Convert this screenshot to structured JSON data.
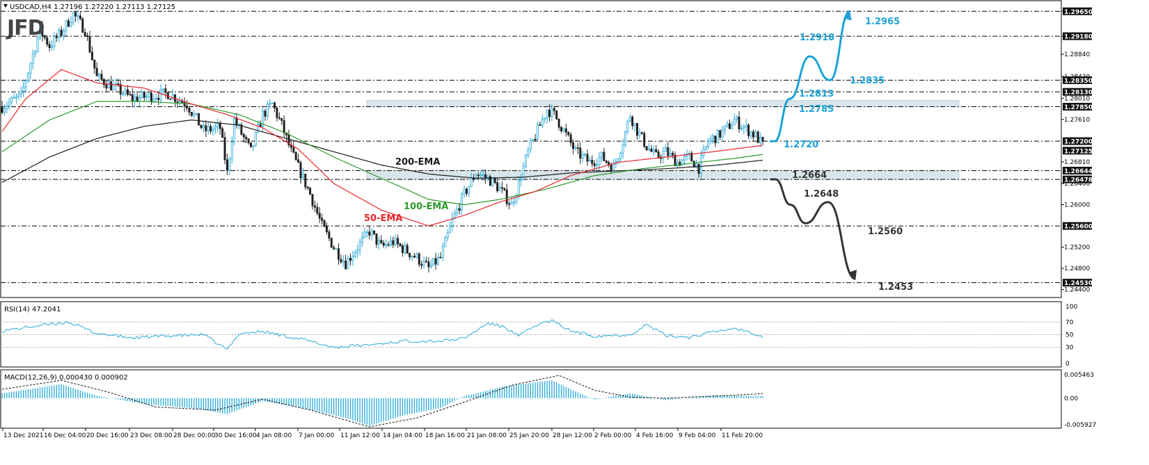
{
  "colors": {
    "background": "#ffffff",
    "bull_candle": "#26a9d6",
    "bear_candle": "#222222",
    "ema50": "#e8262b",
    "ema100": "#2c9a2c",
    "ema200": "#1a1a1a",
    "zone_fill": "#cfdfe4",
    "scenario_up": "#1aa3d6",
    "scenario_down": "#333333",
    "rsi_line": "#26a9d6",
    "macd_hist": "#26a9d6",
    "macd_signal": "#111111",
    "price_tag_bg": "#111111"
  },
  "main_panel": {
    "header": "USDCAD,H4  1.27196 1.27220 1.27113 1.27125",
    "logo": "JFD",
    "ema_labels": {
      "ema200": "200-EMA",
      "ema100": "100-EMA",
      "ema50": "50-EMA"
    },
    "scenario_labels": {
      "up": [
        "1.2720",
        "1.2785",
        "1.2813",
        "1.2835",
        "1.2918",
        "1.2965"
      ],
      "down": [
        "1.2664",
        "1.2648",
        "1.2560",
        "1.2453"
      ]
    },
    "highlighted_price_tags": [
      "1.29650",
      "1.29180",
      "1.28350",
      "1.28130",
      "1.27850",
      "1.27200",
      "1.27125",
      "1.26644",
      "1.26478",
      "1.25600",
      "1.24530"
    ],
    "price_axis_ticks": [
      "1.29650",
      "1.29180",
      "1.28840",
      "1.28420",
      "1.28010",
      "1.27610",
      "1.26810",
      "1.26400",
      "1.26000",
      "1.25200",
      "1.24800",
      "1.24400"
    ]
  },
  "rsi_panel": {
    "header": "RSI(14) 47.2041",
    "levels": [
      "70",
      "50",
      "30"
    ],
    "extra_ticks": [
      "100",
      "0"
    ]
  },
  "macd_panel": {
    "header": "MACD(12,26,9) 0.000430 0.000902",
    "ticks": [
      "0.005463",
      "0.00",
      "-0.005927"
    ]
  },
  "time_axis": [
    "13 Dec 2021",
    "16 Dec 04:00",
    "20 Dec 16:00",
    "23 Dec 08:00",
    "28 Dec 00:00",
    "30 Dec 16:00",
    "4 Jan 08:00",
    "7 Jan 00:00",
    "11 Jan 12:00",
    "14 Jan 04:00",
    "18 Jan 16:00",
    "21 Jan 08:00",
    "25 Jan 20:00",
    "28 Jan 12:00",
    "2 Feb 00:00",
    "4 Feb 16:00",
    "9 Feb 04:00",
    "11 Feb 20:00"
  ],
  "chart_data": {
    "type": "candlestick",
    "symbol": "USDCAD",
    "timeframe": "H4",
    "ylim": [
      1.2425,
      1.2985
    ],
    "support_resistance_levels": [
      1.2965,
      1.2918,
      1.2835,
      1.2813,
      1.2785,
      1.272,
      1.26644,
      1.26478,
      1.256,
      1.2453
    ],
    "zones": [
      [
        1.2785,
        1.2797
      ],
      [
        1.26478,
        1.26644
      ]
    ],
    "bullish_scenario_path": [
      [
        1.272,
        0
      ],
      [
        1.272,
        2
      ],
      [
        1.28,
        8
      ],
      [
        1.288,
        16
      ],
      [
        1.2835,
        24
      ],
      [
        1.2965,
        32
      ]
    ],
    "bearish_scenario_path": [
      [
        1.2648,
        0
      ],
      [
        1.2648,
        2
      ],
      [
        1.26,
        8
      ],
      [
        1.2565,
        14
      ],
      [
        1.2605,
        23
      ],
      [
        1.246,
        34
      ]
    ],
    "close_anchors": [
      [
        0,
        1.2785
      ],
      [
        8,
        1.2805
      ],
      [
        16,
        1.293
      ],
      [
        20,
        1.29
      ],
      [
        25,
        1.2925
      ],
      [
        30,
        1.296
      ],
      [
        35,
        1.293
      ],
      [
        40,
        1.284
      ],
      [
        48,
        1.282
      ],
      [
        55,
        1.28
      ],
      [
        62,
        1.2805
      ],
      [
        70,
        1.281
      ],
      [
        78,
        1.279
      ],
      [
        85,
        1.274
      ],
      [
        92,
        1.2745
      ],
      [
        95,
        1.266
      ],
      [
        98,
        1.276
      ],
      [
        105,
        1.27
      ],
      [
        110,
        1.277
      ],
      [
        114,
        1.279
      ],
      [
        118,
        1.275
      ],
      [
        122,
        1.27
      ],
      [
        126,
        1.266
      ],
      [
        130,
        1.262
      ],
      [
        135,
        1.256
      ],
      [
        140,
        1.252
      ],
      [
        145,
        1.249
      ],
      [
        150,
        1.252
      ],
      [
        155,
        1.255
      ],
      [
        160,
        1.252
      ],
      [
        165,
        1.253
      ],
      [
        170,
        1.2515
      ],
      [
        175,
        1.25
      ],
      [
        180,
        1.248
      ],
      [
        185,
        1.25
      ],
      [
        190,
        1.257
      ],
      [
        195,
        1.262
      ],
      [
        200,
        1.266
      ],
      [
        205,
        1.265
      ],
      [
        210,
        1.263
      ],
      [
        215,
        1.26
      ],
      [
        218,
        1.264
      ],
      [
        222,
        1.27
      ],
      [
        226,
        1.274
      ],
      [
        230,
        1.278
      ],
      [
        233,
        1.277
      ],
      [
        237,
        1.274
      ],
      [
        242,
        1.27
      ],
      [
        248,
        1.268
      ],
      [
        253,
        1.269
      ],
      [
        258,
        1.267
      ],
      [
        262,
        1.272
      ],
      [
        265,
        1.277
      ],
      [
        268,
        1.274
      ],
      [
        272,
        1.271
      ],
      [
        276,
        1.269
      ],
      [
        280,
        1.27
      ],
      [
        285,
        1.268
      ],
      [
        290,
        1.269
      ],
      [
        294,
        1.267
      ],
      [
        298,
        1.272
      ],
      [
        302,
        1.273
      ],
      [
        306,
        1.2745
      ],
      [
        309,
        1.276
      ],
      [
        312,
        1.275
      ],
      [
        315,
        1.274
      ],
      [
        318,
        1.273
      ],
      [
        321,
        1.27125
      ]
    ],
    "ema50_anchors": [
      [
        0,
        1.2738
      ],
      [
        10,
        1.28
      ],
      [
        25,
        1.2855
      ],
      [
        40,
        1.283
      ],
      [
        60,
        1.282
      ],
      [
        80,
        1.279
      ],
      [
        95,
        1.277
      ],
      [
        110,
        1.2745
      ],
      [
        125,
        1.2705
      ],
      [
        140,
        1.264
      ],
      [
        160,
        1.259
      ],
      [
        180,
        1.256
      ],
      [
        195,
        1.258
      ],
      [
        210,
        1.2605
      ],
      [
        225,
        1.2625
      ],
      [
        240,
        1.2655
      ],
      [
        260,
        1.268
      ],
      [
        280,
        1.269
      ],
      [
        300,
        1.27
      ],
      [
        321,
        1.2712
      ]
    ],
    "ema100_anchors": [
      [
        0,
        1.27
      ],
      [
        20,
        1.276
      ],
      [
        40,
        1.2795
      ],
      [
        60,
        1.2795
      ],
      [
        80,
        1.279
      ],
      [
        100,
        1.277
      ],
      [
        120,
        1.2735
      ],
      [
        140,
        1.269
      ],
      [
        160,
        1.265
      ],
      [
        180,
        1.261
      ],
      [
        195,
        1.26
      ],
      [
        210,
        1.261
      ],
      [
        230,
        1.263
      ],
      [
        250,
        1.2655
      ],
      [
        270,
        1.2668
      ],
      [
        290,
        1.2678
      ],
      [
        310,
        1.2688
      ],
      [
        321,
        1.2695
      ]
    ],
    "ema200_anchors": [
      [
        0,
        1.2642
      ],
      [
        20,
        1.269
      ],
      [
        40,
        1.2725
      ],
      [
        60,
        1.2748
      ],
      [
        80,
        1.276
      ],
      [
        100,
        1.275
      ],
      [
        120,
        1.2725
      ],
      [
        140,
        1.27
      ],
      [
        160,
        1.2675
      ],
      [
        180,
        1.2658
      ],
      [
        200,
        1.265
      ],
      [
        220,
        1.2652
      ],
      [
        240,
        1.266
      ],
      [
        260,
        1.2664
      ],
      [
        280,
        1.2668
      ],
      [
        300,
        1.2674
      ],
      [
        321,
        1.2684
      ]
    ],
    "rsi_anchors": [
      [
        0,
        56
      ],
      [
        15,
        64
      ],
      [
        28,
        70
      ],
      [
        40,
        52
      ],
      [
        55,
        45
      ],
      [
        70,
        48
      ],
      [
        85,
        50
      ],
      [
        95,
        26
      ],
      [
        100,
        52
      ],
      [
        110,
        55
      ],
      [
        125,
        44
      ],
      [
        140,
        30
      ],
      [
        155,
        34
      ],
      [
        170,
        40
      ],
      [
        185,
        40
      ],
      [
        195,
        44
      ],
      [
        205,
        68
      ],
      [
        212,
        62
      ],
      [
        218,
        48
      ],
      [
        226,
        66
      ],
      [
        232,
        72
      ],
      [
        240,
        56
      ],
      [
        250,
        48
      ],
      [
        265,
        50
      ],
      [
        272,
        66
      ],
      [
        280,
        49
      ],
      [
        290,
        46
      ],
      [
        300,
        54
      ],
      [
        309,
        60
      ],
      [
        316,
        54
      ],
      [
        321,
        47.2
      ]
    ],
    "macd_hist_anchors": [
      [
        0,
        0.001
      ],
      [
        25,
        0.0028
      ],
      [
        40,
        0.0005
      ],
      [
        60,
        -0.0012
      ],
      [
        80,
        -0.002
      ],
      [
        95,
        -0.0032
      ],
      [
        110,
        -0.0006
      ],
      [
        125,
        -0.0018
      ],
      [
        145,
        -0.004
      ],
      [
        155,
        -0.0056
      ],
      [
        170,
        -0.0034
      ],
      [
        185,
        -0.002
      ],
      [
        195,
        0.0004
      ],
      [
        212,
        0.0024
      ],
      [
        232,
        0.0036
      ],
      [
        240,
        0.0018
      ],
      [
        250,
        -0.0003
      ],
      [
        265,
        0.001
      ],
      [
        280,
        -0.0004
      ],
      [
        300,
        0.0006
      ],
      [
        321,
        0.0004
      ]
    ],
    "macd_signal_anchors": [
      [
        0,
        0.0018
      ],
      [
        25,
        0.0036
      ],
      [
        45,
        0.0012
      ],
      [
        65,
        -0.0018
      ],
      [
        90,
        -0.0024
      ],
      [
        110,
        -0.0002
      ],
      [
        130,
        -0.0024
      ],
      [
        155,
        -0.0058
      ],
      [
        175,
        -0.004
      ],
      [
        195,
        -0.0008
      ],
      [
        215,
        0.0026
      ],
      [
        235,
        0.0046
      ],
      [
        250,
        0.0016
      ],
      [
        265,
        0.0002
      ],
      [
        280,
        0.0
      ],
      [
        300,
        0.0004
      ],
      [
        321,
        0.0009
      ]
    ]
  }
}
